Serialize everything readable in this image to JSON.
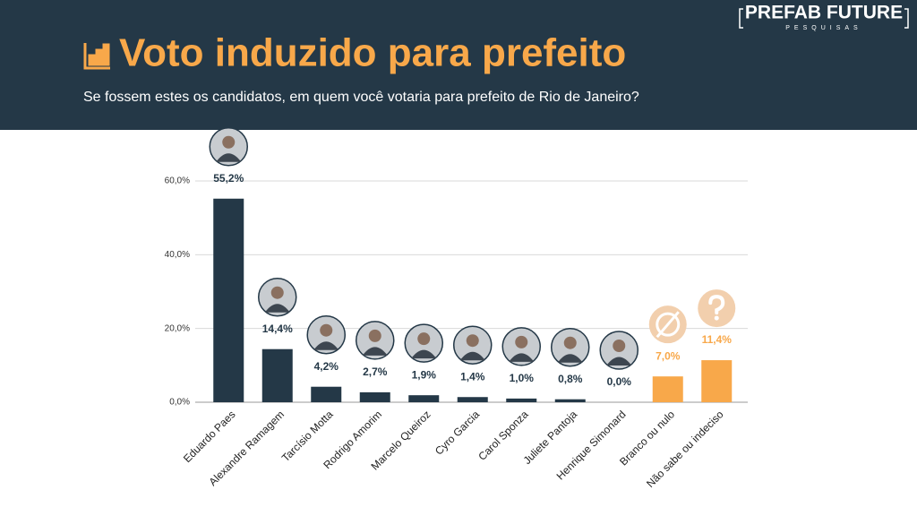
{
  "brand": {
    "name": "PREFAB FUTURE",
    "tagline": "PESQUISAS"
  },
  "chart_data": {
    "type": "bar",
    "title": "Voto induzido para prefeito",
    "subtitle": "Se fossem estes os candidatos, em quem você votaria para prefeito de Rio de Janeiro?",
    "categories": [
      "Eduardo Paes",
      "Alexandre Ramagem",
      "Tarcísio Motta",
      "Rodrigo Amorim",
      "Marcelo Queiroz",
      "Cyro Garcia",
      "Carol Sponza",
      "Juliete Pantoja",
      "Henrique Simonard",
      "Branco ou nulo",
      "Não sabe ou indeciso"
    ],
    "values": [
      55.2,
      14.4,
      4.2,
      2.7,
      1.9,
      1.4,
      1.0,
      0.8,
      0.0,
      7.0,
      11.4
    ],
    "value_labels": [
      "55,2%",
      "14,4%",
      "4,2%",
      "2,7%",
      "1,9%",
      "1,4%",
      "1,0%",
      "0,8%",
      "0,0%",
      "7,0%",
      "11,4%"
    ],
    "colors": [
      "#243847",
      "#243847",
      "#243847",
      "#243847",
      "#243847",
      "#243847",
      "#243847",
      "#243847",
      "#243847",
      "#f8a84a",
      "#f8a84a"
    ],
    "ylim": [
      0,
      60
    ],
    "yticks": [
      {
        "value": 0,
        "label": "0,0%"
      },
      {
        "value": 20,
        "label": "20,0%"
      },
      {
        "value": 40,
        "label": "40,0%"
      },
      {
        "value": 60,
        "label": "60,0%"
      }
    ],
    "grid": true
  }
}
